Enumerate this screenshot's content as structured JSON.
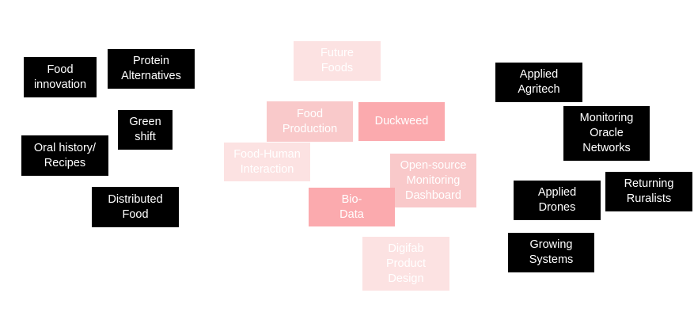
{
  "left_cluster": {
    "food_innovation": "Food\ninnovation",
    "protein_alternatives": "Protein\nAlternatives",
    "green_shift": "Green\nshift",
    "oral_history": "Oral history/\nRecipes",
    "distributed_food": "Distributed\nFood"
  },
  "center_cluster": {
    "future_foods": "Future\nFoods",
    "food_production": "Food\nProduction",
    "duckweed": "Duckweed",
    "food_human_interaction": "Food-Human\nInteraction",
    "open_source_dashboard": "Open-source\nMonitoring\nDashboard",
    "bio_data": "Bio-\nData",
    "digifab_product_design": "Digifab\nProduct\nDesign"
  },
  "right_cluster": {
    "applied_agritech": "Applied\nAgritech",
    "monitoring_oracle_networks": "Monitoring\nOracle\nNetworks",
    "applied_drones": "Applied\nDrones",
    "returning_ruralists": "Returning\nRuralists",
    "growing_systems": "Growing\nSystems"
  },
  "colors": {
    "dark_tile": "#000000",
    "pale_tile": "#fce2e2",
    "light_tile": "#f9c9ca",
    "mid_tile": "#fbaaae",
    "tile_text_dark": "#ffffff",
    "background": "#ffffff"
  }
}
